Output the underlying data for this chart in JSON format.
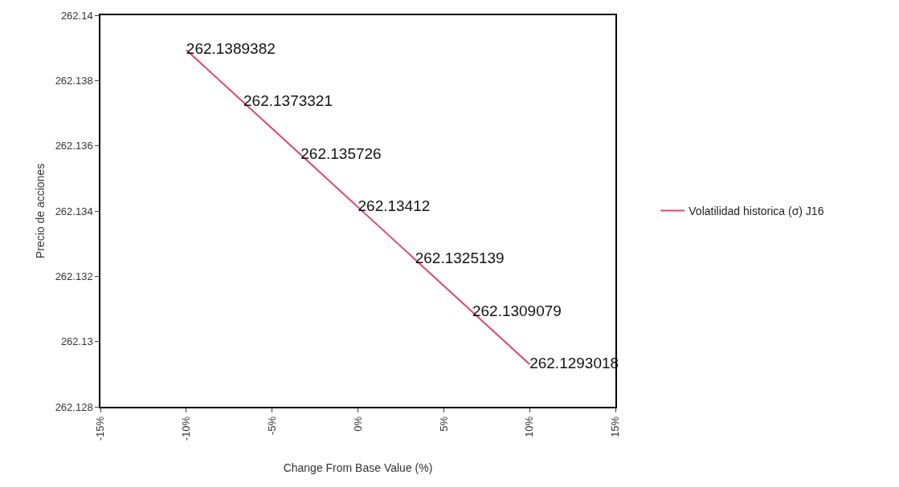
{
  "chart_data": {
    "type": "line",
    "xlabel": "Change From Base Value (%)",
    "ylabel": "Precio de acciones",
    "series": [
      {
        "name": "Volatilidad historica (σ) J16",
        "color": "#e0456b",
        "x": [
          -10,
          -6.667,
          -3.333,
          0,
          3.333,
          6.667,
          10
        ],
        "values": [
          262.1389382,
          262.1373321,
          262.135726,
          262.13412,
          262.1325139,
          262.1309079,
          262.1293018
        ]
      }
    ],
    "data_labels": true,
    "marker": "none",
    "legend": "right",
    "xlim": [
      -15,
      15
    ],
    "xticks": [
      {
        "value": -15,
        "label": "-15%"
      },
      {
        "value": -10,
        "label": "-10%"
      },
      {
        "value": -5,
        "label": "-5%"
      },
      {
        "value": 0,
        "label": "0%"
      },
      {
        "value": 5,
        "label": "5%"
      },
      {
        "value": 10,
        "label": "10%"
      },
      {
        "value": 15,
        "label": "15%"
      }
    ],
    "ylim": [
      262.128,
      262.14
    ],
    "yticks": [
      262.128,
      262.13,
      262.132,
      262.134,
      262.136,
      262.138,
      262.14
    ]
  }
}
